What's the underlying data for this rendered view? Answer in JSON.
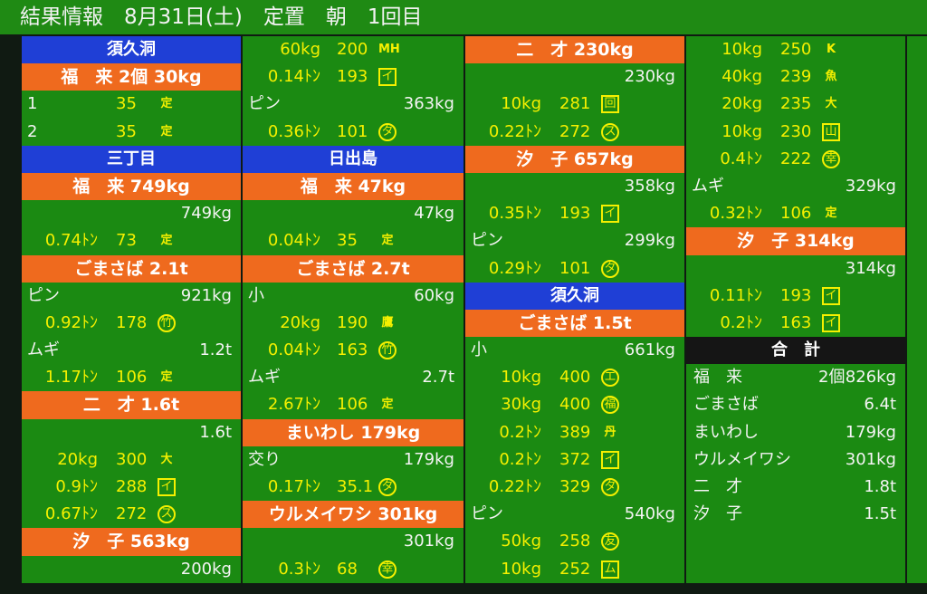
{
  "title": "結果情報　8月31日(土)　定置　朝　1回目",
  "columns": [
    [
      {
        "t": "blue",
        "text": "須久洞"
      },
      {
        "t": "orange",
        "text": "福　来 2個 30kg"
      },
      {
        "t": "pr",
        "idx": "1",
        "p": "35",
        "mk": "定",
        "ms": "plain"
      },
      {
        "t": "pr",
        "idx": "2",
        "p": "35",
        "mk": "定",
        "ms": "plain"
      },
      {
        "t": "blue",
        "text": "三丁目"
      },
      {
        "t": "orange",
        "text": "福　来 749kg"
      },
      {
        "t": "num",
        "text": "749kg"
      },
      {
        "t": "pr",
        "w": "0.74ﾄﾝ",
        "p": "73",
        "mk": "定",
        "ms": "plain"
      },
      {
        "t": "orange",
        "text": "ごまさば 2.1t"
      },
      {
        "t": "sub",
        "l": "ピン",
        "v": "921kg"
      },
      {
        "t": "pr",
        "w": "0.92ﾄﾝ",
        "p": "178",
        "mk": "竹",
        "ms": "circ"
      },
      {
        "t": "sub",
        "l": "ムギ",
        "v": "1.2t"
      },
      {
        "t": "pr",
        "w": "1.17ﾄﾝ",
        "p": "106",
        "mk": "定",
        "ms": "plain"
      },
      {
        "t": "orange",
        "text": "二　才 1.6t"
      },
      {
        "t": "num",
        "text": "1.6t"
      },
      {
        "t": "pr",
        "w": "20kg",
        "p": "300",
        "mk": "大",
        "ms": "plain"
      },
      {
        "t": "pr",
        "w": "0.9ﾄﾝ",
        "p": "288",
        "mk": "イ",
        "ms": "box"
      },
      {
        "t": "pr",
        "w": "0.67ﾄﾝ",
        "p": "272",
        "mk": "ス",
        "ms": "circ"
      },
      {
        "t": "orange",
        "text": "汐　子 563kg"
      },
      {
        "t": "num",
        "text": "200kg"
      }
    ],
    [
      {
        "t": "pr",
        "w": "60kg",
        "p": "200",
        "mk": "MH",
        "ms": "plain"
      },
      {
        "t": "pr",
        "w": "0.14ﾄﾝ",
        "p": "193",
        "mk": "イ",
        "ms": "box"
      },
      {
        "t": "sub",
        "l": "ピン",
        "v": "363kg"
      },
      {
        "t": "pr",
        "w": "0.36ﾄﾝ",
        "p": "101",
        "mk": "タ",
        "ms": "circ"
      },
      {
        "t": "blue",
        "text": "日出島"
      },
      {
        "t": "orange",
        "text": "福　来 47kg"
      },
      {
        "t": "num",
        "text": "47kg"
      },
      {
        "t": "pr",
        "w": "0.04ﾄﾝ",
        "p": "35",
        "mk": "定",
        "ms": "plain"
      },
      {
        "t": "orange",
        "text": "ごまさば 2.7t"
      },
      {
        "t": "sub",
        "l": "小",
        "v": "60kg"
      },
      {
        "t": "pr",
        "w": "20kg",
        "p": "190",
        "mk": "鷹",
        "ms": "plain"
      },
      {
        "t": "pr",
        "w": "0.04ﾄﾝ",
        "p": "163",
        "mk": "竹",
        "ms": "circ"
      },
      {
        "t": "sub",
        "l": "ムギ",
        "v": "2.7t"
      },
      {
        "t": "pr",
        "w": "2.67ﾄﾝ",
        "p": "106",
        "mk": "定",
        "ms": "plain"
      },
      {
        "t": "orange",
        "text": "まいわし 179kg"
      },
      {
        "t": "sub",
        "l": "交り",
        "v": "179kg"
      },
      {
        "t": "pr",
        "w": "0.17ﾄﾝ",
        "p": "35.1",
        "mk": "タ",
        "ms": "circ"
      },
      {
        "t": "orange",
        "text": "ウルメイワシ 301kg"
      },
      {
        "t": "num",
        "text": "301kg"
      },
      {
        "t": "pr",
        "w": "0.3ﾄﾝ",
        "p": "68",
        "mk": "幸",
        "ms": "circ"
      }
    ],
    [
      {
        "t": "orange",
        "text": "二　才 230kg"
      },
      {
        "t": "num",
        "text": "230kg"
      },
      {
        "t": "pr",
        "w": "10kg",
        "p": "281",
        "mk": "回",
        "ms": "box"
      },
      {
        "t": "pr",
        "w": "0.22ﾄﾝ",
        "p": "272",
        "mk": "ス",
        "ms": "circ"
      },
      {
        "t": "orange",
        "text": "汐　子 657kg"
      },
      {
        "t": "num",
        "text": "358kg"
      },
      {
        "t": "pr",
        "w": "0.35ﾄﾝ",
        "p": "193",
        "mk": "イ",
        "ms": "box"
      },
      {
        "t": "sub",
        "l": "ピン",
        "v": "299kg"
      },
      {
        "t": "pr",
        "w": "0.29ﾄﾝ",
        "p": "101",
        "mk": "タ",
        "ms": "circ"
      },
      {
        "t": "blue",
        "text": "須久洞"
      },
      {
        "t": "orange",
        "text": "ごまさば 1.5t"
      },
      {
        "t": "sub",
        "l": "小",
        "v": "661kg"
      },
      {
        "t": "pr",
        "w": "10kg",
        "p": "400",
        "mk": "エ",
        "ms": "circ"
      },
      {
        "t": "pr",
        "w": "30kg",
        "p": "400",
        "mk": "福",
        "ms": "circ"
      },
      {
        "t": "pr",
        "w": "0.2ﾄﾝ",
        "p": "389",
        "mk": "丹",
        "ms": "plain"
      },
      {
        "t": "pr",
        "w": "0.2ﾄﾝ",
        "p": "372",
        "mk": "イ",
        "ms": "box"
      },
      {
        "t": "pr",
        "w": "0.22ﾄﾝ",
        "p": "329",
        "mk": "タ",
        "ms": "circ"
      },
      {
        "t": "sub",
        "l": "ピン",
        "v": "540kg"
      },
      {
        "t": "pr",
        "w": "50kg",
        "p": "258",
        "mk": "友",
        "ms": "circ"
      },
      {
        "t": "pr",
        "w": "10kg",
        "p": "252",
        "mk": "ム",
        "ms": "box"
      }
    ],
    [
      {
        "t": "pr",
        "w": "10kg",
        "p": "250",
        "mk": "K",
        "ms": "plain"
      },
      {
        "t": "pr",
        "w": "40kg",
        "p": "239",
        "mk": "魚",
        "ms": "plain"
      },
      {
        "t": "pr",
        "w": "20kg",
        "p": "235",
        "mk": "大",
        "ms": "plain"
      },
      {
        "t": "pr",
        "w": "10kg",
        "p": "230",
        "mk": "山",
        "ms": "box"
      },
      {
        "t": "pr",
        "w": "0.4ﾄﾝ",
        "p": "222",
        "mk": "幸",
        "ms": "circ"
      },
      {
        "t": "sub",
        "l": "ムギ",
        "v": "329kg"
      },
      {
        "t": "pr",
        "w": "0.32ﾄﾝ",
        "p": "106",
        "mk": "定",
        "ms": "plain"
      },
      {
        "t": "orange",
        "text": "汐　子 314kg"
      },
      {
        "t": "num",
        "text": "314kg"
      },
      {
        "t": "pr",
        "w": "0.11ﾄﾝ",
        "p": "193",
        "mk": "イ",
        "ms": "box"
      },
      {
        "t": "pr",
        "w": "0.2ﾄﾝ",
        "p": "163",
        "mk": "イ",
        "ms": "box"
      },
      {
        "t": "black",
        "text": "合　計"
      },
      {
        "t": "tot",
        "l": "福　来",
        "c": "2個",
        "v": "826kg"
      },
      {
        "t": "tot",
        "l": "ごまさば",
        "v": "6.4t"
      },
      {
        "t": "tot",
        "l": "まいわし",
        "v": "179kg"
      },
      {
        "t": "tot",
        "l": "ウルメイワシ",
        "v": "301kg"
      },
      {
        "t": "tot",
        "l": "二　才",
        "v": "1.8t"
      },
      {
        "t": "tot",
        "l": "汐　子",
        "v": "1.5t"
      },
      {
        "t": "tot",
        "l": ""
      },
      {
        "t": "tot",
        "l": ""
      }
    ]
  ]
}
